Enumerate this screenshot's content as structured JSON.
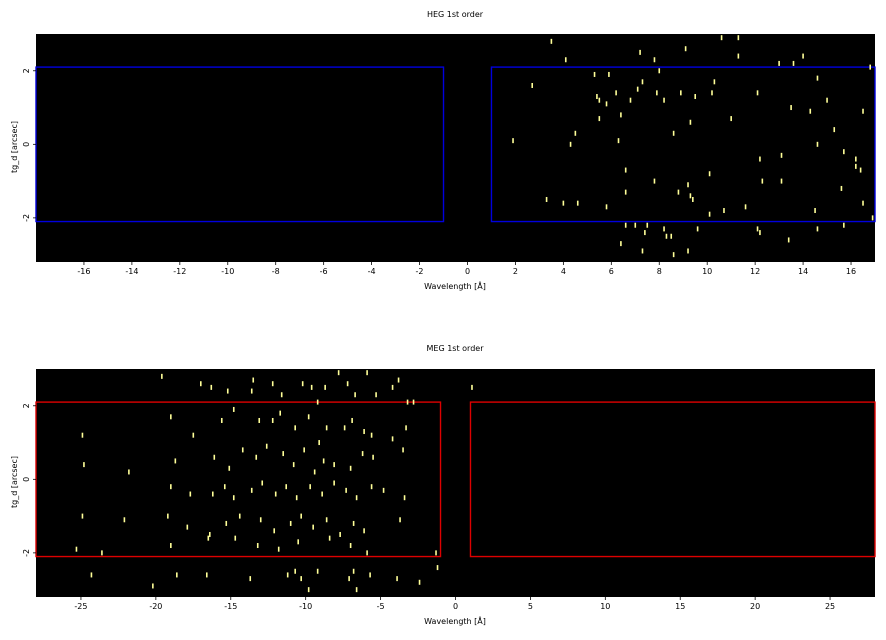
{
  "chart_data": [
    {
      "type": "scatter",
      "title": "HEG 1st order",
      "xlabel": "Wavelength [Å]",
      "ylabel": "tg_d [arcsec]",
      "xlim": [
        -18,
        17
      ],
      "ylim": [
        -3.2,
        3.0
      ],
      "xticks": [
        -16,
        -14,
        -12,
        -10,
        -8,
        -6,
        -4,
        -2,
        0,
        2,
        4,
        6,
        8,
        10,
        12,
        14,
        16
      ],
      "yticks": [
        -2,
        0,
        2
      ],
      "background": "#000000",
      "point_color": "#ffff99",
      "region_color": "#0000dd",
      "regions": [
        {
          "x0": -18,
          "x1": -1,
          "y0": -2.1,
          "y1": 2.1
        },
        {
          "x0": 1,
          "x1": 17,
          "y0": -2.1,
          "y1": 2.1
        }
      ],
      "points": [
        [
          3.5,
          2.8
        ],
        [
          4.1,
          2.3
        ],
        [
          7.2,
          2.5
        ],
        [
          7.8,
          2.3
        ],
        [
          9.1,
          2.6
        ],
        [
          10.6,
          2.9
        ],
        [
          11.3,
          2.9
        ],
        [
          11.3,
          2.4
        ],
        [
          13.0,
          2.2
        ],
        [
          13.6,
          2.2
        ],
        [
          14.0,
          2.4
        ],
        [
          16.8,
          2.1
        ],
        [
          5.3,
          1.9
        ],
        [
          5.9,
          1.9
        ],
        [
          7.3,
          1.7
        ],
        [
          8.0,
          2.0
        ],
        [
          10.3,
          1.7
        ],
        [
          14.6,
          1.8
        ],
        [
          2.7,
          1.6
        ],
        [
          5.4,
          1.3
        ],
        [
          5.5,
          1.2
        ],
        [
          5.8,
          1.1
        ],
        [
          6.2,
          1.4
        ],
        [
          6.8,
          1.2
        ],
        [
          7.1,
          1.5
        ],
        [
          7.9,
          1.4
        ],
        [
          8.2,
          1.2
        ],
        [
          8.9,
          1.4
        ],
        [
          9.5,
          1.3
        ],
        [
          10.2,
          1.4
        ],
        [
          12.1,
          1.4
        ],
        [
          13.5,
          1.0
        ],
        [
          15.0,
          1.2
        ],
        [
          5.5,
          0.7
        ],
        [
          6.4,
          0.8
        ],
        [
          9.3,
          0.6
        ],
        [
          11.0,
          0.7
        ],
        [
          14.3,
          0.9
        ],
        [
          15.3,
          0.4
        ],
        [
          16.5,
          0.9
        ],
        [
          1.9,
          0.1
        ],
        [
          4.5,
          0.3
        ],
        [
          4.3,
          0.0
        ],
        [
          6.3,
          0.1
        ],
        [
          8.6,
          0.3
        ],
        [
          12.2,
          -0.4
        ],
        [
          13.1,
          -0.3
        ],
        [
          14.6,
          0.0
        ],
        [
          15.7,
          -0.2
        ],
        [
          16.2,
          -0.4
        ],
        [
          16.2,
          -0.6
        ],
        [
          6.6,
          -0.7
        ],
        [
          7.8,
          -1.0
        ],
        [
          9.2,
          -1.1
        ],
        [
          10.1,
          -0.8
        ],
        [
          12.3,
          -1.0
        ],
        [
          13.1,
          -1.0
        ],
        [
          15.6,
          -1.2
        ],
        [
          16.4,
          -0.7
        ],
        [
          3.3,
          -1.5
        ],
        [
          4.0,
          -1.6
        ],
        [
          4.6,
          -1.6
        ],
        [
          5.8,
          -1.7
        ],
        [
          6.6,
          -1.3
        ],
        [
          8.8,
          -1.3
        ],
        [
          9.3,
          -1.4
        ],
        [
          9.4,
          -1.5
        ],
        [
          10.1,
          -1.9
        ],
        [
          10.7,
          -1.8
        ],
        [
          11.6,
          -1.7
        ],
        [
          14.5,
          -1.8
        ],
        [
          16.5,
          -1.6
        ],
        [
          7.0,
          -2.2
        ],
        [
          7.4,
          -2.4
        ],
        [
          7.5,
          -2.2
        ],
        [
          8.2,
          -2.3
        ],
        [
          8.3,
          -2.5
        ],
        [
          8.5,
          -2.5
        ],
        [
          9.6,
          -2.3
        ],
        [
          12.1,
          -2.3
        ],
        [
          12.2,
          -2.4
        ],
        [
          13.4,
          -2.6
        ],
        [
          14.6,
          -2.3
        ],
        [
          15.7,
          -2.2
        ],
        [
          16.9,
          -2.0
        ],
        [
          6.4,
          -2.7
        ],
        [
          7.3,
          -2.9
        ],
        [
          8.6,
          -3.0
        ],
        [
          9.2,
          -2.9
        ],
        [
          6.6,
          -2.2
        ]
      ]
    },
    {
      "type": "scatter",
      "title": "MEG 1st order",
      "xlabel": "Wavelength [Å]",
      "ylabel": "tg_d [arcsec]",
      "xlim": [
        -28,
        28
      ],
      "ylim": [
        -3.2,
        3.0
      ],
      "xticks": [
        -25,
        -20,
        -15,
        -10,
        -5,
        0,
        5,
        10,
        15,
        20,
        25
      ],
      "yticks": [
        -2,
        0,
        2
      ],
      "background": "#000000",
      "point_color": "#ffff99",
      "region_color": "#dd0000",
      "regions": [
        {
          "x0": -28,
          "x1": -1,
          "y0": -2.1,
          "y1": 2.1
        },
        {
          "x0": 1,
          "x1": 28,
          "y0": -2.1,
          "y1": 2.1
        }
      ],
      "points": [
        [
          -19.6,
          2.8
        ],
        [
          -17.0,
          2.6
        ],
        [
          -16.3,
          2.5
        ],
        [
          -15.2,
          2.4
        ],
        [
          -13.6,
          2.4
        ],
        [
          -13.5,
          2.7
        ],
        [
          -12.2,
          2.6
        ],
        [
          -11.6,
          2.3
        ],
        [
          -10.2,
          2.6
        ],
        [
          -9.6,
          2.5
        ],
        [
          -9.2,
          2.1
        ],
        [
          -8.7,
          2.5
        ],
        [
          -7.8,
          2.9
        ],
        [
          -7.2,
          2.6
        ],
        [
          -6.7,
          2.3
        ],
        [
          -5.9,
          2.9
        ],
        [
          -5.3,
          2.3
        ],
        [
          -4.2,
          2.5
        ],
        [
          -3.8,
          2.7
        ],
        [
          -3.2,
          2.1
        ],
        [
          -2.8,
          2.1
        ],
        [
          1.1,
          2.5
        ],
        [
          -19.0,
          1.7
        ],
        [
          -17.5,
          1.2
        ],
        [
          -15.6,
          1.6
        ],
        [
          -14.8,
          1.9
        ],
        [
          -13.1,
          1.6
        ],
        [
          -12.2,
          1.6
        ],
        [
          -11.7,
          1.8
        ],
        [
          -10.7,
          1.4
        ],
        [
          -9.8,
          1.7
        ],
        [
          -9.1,
          1.0
        ],
        [
          -8.6,
          1.4
        ],
        [
          -7.4,
          1.4
        ],
        [
          -6.9,
          1.6
        ],
        [
          -6.1,
          1.3
        ],
        [
          -5.6,
          1.2
        ],
        [
          -4.2,
          1.1
        ],
        [
          -3.5,
          0.8
        ],
        [
          -3.3,
          1.4
        ],
        [
          -24.9,
          1.2
        ],
        [
          -24.8,
          0.4
        ],
        [
          -21.8,
          0.2
        ],
        [
          -18.7,
          0.5
        ],
        [
          -16.1,
          0.6
        ],
        [
          -15.1,
          0.3
        ],
        [
          -14.2,
          0.8
        ],
        [
          -13.3,
          0.6
        ],
        [
          -12.6,
          0.9
        ],
        [
          -11.5,
          0.7
        ],
        [
          -10.8,
          0.4
        ],
        [
          -10.1,
          0.8
        ],
        [
          -9.4,
          0.2
        ],
        [
          -8.8,
          0.5
        ],
        [
          -8.1,
          0.4
        ],
        [
          -7.0,
          0.3
        ],
        [
          -6.2,
          0.7
        ],
        [
          -5.5,
          0.6
        ],
        [
          -19.0,
          -0.2
        ],
        [
          -17.7,
          -0.4
        ],
        [
          -16.2,
          -0.4
        ],
        [
          -15.4,
          -0.2
        ],
        [
          -14.8,
          -0.5
        ],
        [
          -13.6,
          -0.3
        ],
        [
          -12.9,
          -0.1
        ],
        [
          -12.0,
          -0.4
        ],
        [
          -11.3,
          -0.2
        ],
        [
          -10.6,
          -0.5
        ],
        [
          -9.7,
          -0.2
        ],
        [
          -8.9,
          -0.4
        ],
        [
          -8.1,
          -0.1
        ],
        [
          -7.3,
          -0.3
        ],
        [
          -6.6,
          -0.5
        ],
        [
          -5.6,
          -0.2
        ],
        [
          -4.8,
          -0.3
        ],
        [
          -3.4,
          -0.5
        ],
        [
          -24.9,
          -1.0
        ],
        [
          -22.1,
          -1.1
        ],
        [
          -19.2,
          -1.0
        ],
        [
          -17.9,
          -1.3
        ],
        [
          -16.4,
          -1.5
        ],
        [
          -15.3,
          -1.2
        ],
        [
          -14.4,
          -1.0
        ],
        [
          -13.0,
          -1.1
        ],
        [
          -12.1,
          -1.4
        ],
        [
          -11.0,
          -1.2
        ],
        [
          -10.3,
          -1.0
        ],
        [
          -9.5,
          -1.3
        ],
        [
          -8.6,
          -1.1
        ],
        [
          -7.7,
          -1.5
        ],
        [
          -6.8,
          -1.2
        ],
        [
          -6.1,
          -1.4
        ],
        [
          -3.7,
          -1.1
        ],
        [
          -25.3,
          -1.9
        ],
        [
          -23.6,
          -2.0
        ],
        [
          -19.0,
          -1.8
        ],
        [
          -16.5,
          -1.6
        ],
        [
          -14.7,
          -1.6
        ],
        [
          -13.2,
          -1.8
        ],
        [
          -11.8,
          -1.9
        ],
        [
          -10.5,
          -1.7
        ],
        [
          -8.4,
          -1.6
        ],
        [
          -7.0,
          -1.8
        ],
        [
          -5.9,
          -2.0
        ],
        [
          -1.3,
          -2.0
        ],
        [
          -24.3,
          -2.6
        ],
        [
          -20.2,
          -2.9
        ],
        [
          -18.6,
          -2.6
        ],
        [
          -16.6,
          -2.6
        ],
        [
          -13.7,
          -2.7
        ],
        [
          -11.2,
          -2.6
        ],
        [
          -10.7,
          -2.5
        ],
        [
          -10.3,
          -2.7
        ],
        [
          -9.8,
          -3.0
        ],
        [
          -9.2,
          -2.5
        ],
        [
          -7.1,
          -2.7
        ],
        [
          -6.8,
          -2.5
        ],
        [
          -6.6,
          -3.0
        ],
        [
          -5.7,
          -2.6
        ],
        [
          -3.9,
          -2.7
        ],
        [
          -2.4,
          -2.8
        ],
        [
          -1.2,
          -2.4
        ]
      ]
    }
  ]
}
